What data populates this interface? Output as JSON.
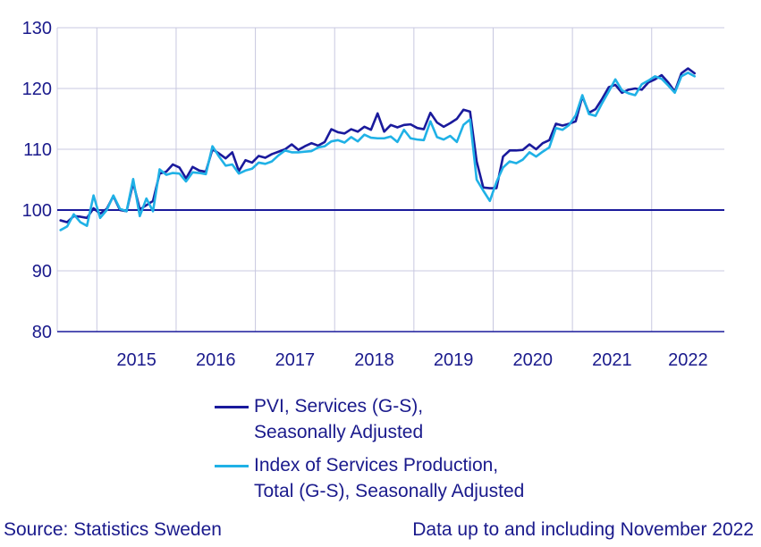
{
  "chart_data": {
    "type": "line",
    "title": "",
    "xlabel": "",
    "ylabel": "",
    "ylim": [
      80,
      130
    ],
    "yticks": [
      80,
      90,
      100,
      110,
      120,
      130
    ],
    "year_labels": [
      "2015",
      "2016",
      "2017",
      "2018",
      "2019",
      "2020",
      "2021",
      "2022"
    ],
    "x_start": "2014-07",
    "x_end": "2022-11",
    "reference_line": 100,
    "series": [
      {
        "name": "PVI, Services (G-S), Seasonally Adjusted",
        "color": "#1a1a9c",
        "values": [
          98.3,
          98.0,
          99.0,
          98.9,
          98.7,
          100.3,
          99.4,
          100.2,
          102.3,
          100.0,
          99.8,
          104.5,
          100.1,
          100.8,
          101.5,
          106.0,
          106.3,
          107.5,
          107.0,
          105.2,
          107.1,
          106.5,
          106.3,
          110.0,
          109.3,
          108.5,
          109.5,
          106.4,
          108.2,
          107.8,
          108.9,
          108.6,
          109.2,
          109.6,
          110.0,
          110.8,
          109.9,
          110.5,
          111.0,
          110.6,
          111.2,
          113.3,
          112.8,
          112.6,
          113.3,
          112.9,
          113.7,
          113.2,
          115.9,
          112.9,
          114.0,
          113.6,
          114.0,
          114.1,
          113.5,
          113.3,
          116.0,
          114.4,
          113.7,
          114.3,
          115.0,
          116.5,
          116.2,
          108.0,
          103.7,
          103.6,
          103.6,
          108.8,
          109.8,
          109.8,
          109.9,
          110.8,
          110.0,
          111.0,
          111.5,
          114.2,
          113.9,
          114.2,
          114.6,
          118.7,
          116.0,
          116.6,
          118.3,
          120.2,
          120.6,
          119.3,
          119.8,
          120.0,
          119.8,
          121.0,
          121.5,
          122.2,
          121.0,
          119.5,
          122.5,
          123.3,
          122.5
        ]
      },
      {
        "name": "Index of Services Production, Total (G-S), Seasonally Adjusted",
        "color": "#1fb1e6",
        "values": [
          96.7,
          97.3,
          99.3,
          98.0,
          97.4,
          102.4,
          98.7,
          100.0,
          102.4,
          100.2,
          99.8,
          105.1,
          99.0,
          101.9,
          99.8,
          106.7,
          105.8,
          106.1,
          106.0,
          104.7,
          106.2,
          106.1,
          105.9,
          110.5,
          108.8,
          107.3,
          107.5,
          106.0,
          106.5,
          106.8,
          107.8,
          107.6,
          108.0,
          109.0,
          109.8,
          109.5,
          109.5,
          109.6,
          109.7,
          110.3,
          110.5,
          111.3,
          111.5,
          111.1,
          112.0,
          111.3,
          112.4,
          111.9,
          111.8,
          111.8,
          112.1,
          111.2,
          113.2,
          111.8,
          111.6,
          111.5,
          114.6,
          112.0,
          111.6,
          112.2,
          111.2,
          114.0,
          114.9,
          105.0,
          103.2,
          101.5,
          104.6,
          107.0,
          108.0,
          107.7,
          108.3,
          109.5,
          108.8,
          109.6,
          110.3,
          113.5,
          113.2,
          114.0,
          115.6,
          118.9,
          115.8,
          115.5,
          117.6,
          119.5,
          121.5,
          119.7,
          119.2,
          118.9,
          120.7,
          121.3,
          122.0,
          121.6,
          120.5,
          119.3,
          122.0,
          122.6,
          122.0
        ]
      }
    ]
  },
  "legend": {
    "series1_line1": "PVI, Services (G-S),",
    "series1_line2": "Seasonally Adjusted",
    "series2_line1": "Index of Services Production,",
    "series2_line2": "Total (G-S), Seasonally Adjusted"
  },
  "footer": {
    "source": "Source: Statistics Sweden",
    "note": "Data up to and including November 2022"
  },
  "colors": {
    "text": "#1a1a8c",
    "grid": "#c8c8e0",
    "axis": "#1a1a9c"
  }
}
